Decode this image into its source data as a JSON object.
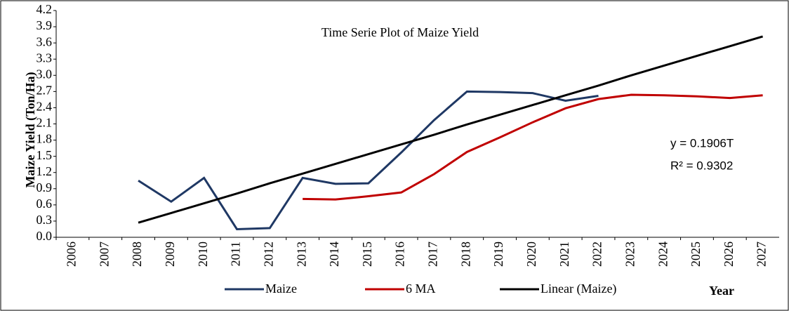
{
  "chart_data": {
    "type": "line",
    "title": "Time Serie Plot of Maize Yield",
    "y_label": "Maize Yield (Ton/Ha)",
    "x_label": "Year",
    "categories": [
      "2006",
      "2007",
      "2008",
      "2009",
      "2010",
      "2011",
      "2012",
      "2013",
      "2014",
      "2015",
      "2016",
      "2017",
      "2018",
      "2019",
      "2020",
      "2021",
      "2022",
      "2023",
      "2024",
      "2025",
      "2026",
      "2027"
    ],
    "series": [
      {
        "name": "Maize",
        "color": "#1f3864",
        "values": [
          null,
          null,
          1.05,
          0.66,
          1.1,
          0.15,
          0.17,
          1.1,
          0.99,
          1.0,
          1.57,
          2.17,
          2.7,
          2.69,
          2.67,
          2.53,
          2.62,
          null,
          null,
          null,
          null,
          null
        ]
      },
      {
        "name": "6 MA",
        "color": "#c00000",
        "values": [
          null,
          null,
          null,
          null,
          null,
          null,
          null,
          0.71,
          0.7,
          0.76,
          0.83,
          1.17,
          1.58,
          1.85,
          2.13,
          2.39,
          2.56,
          2.64,
          2.63,
          2.61,
          2.58,
          2.63
        ]
      },
      {
        "name": "Linear (Maize)",
        "color": "#000000",
        "values": [
          null,
          null,
          0.27,
          0.45,
          0.63,
          0.81,
          1.0,
          1.18,
          1.36,
          1.54,
          1.72,
          1.9,
          2.09,
          2.27,
          2.45,
          2.63,
          2.81,
          3.0,
          3.18,
          3.36,
          3.54,
          3.72
        ]
      }
    ],
    "annotations": [
      "y = 0.1906T",
      "R² = 0.9302"
    ],
    "ylim": [
      0,
      4.2
    ],
    "yticks": [
      {
        "value": 0,
        "label": "0.0"
      },
      0.3,
      0.6,
      0.9,
      1.2,
      1.5,
      1.8,
      2.1,
      2.4,
      2.7,
      {
        "value": 3,
        "label": "3.0"
      },
      3.3,
      3.6,
      3.9,
      4.2
    ],
    "legend": "bottom"
  }
}
